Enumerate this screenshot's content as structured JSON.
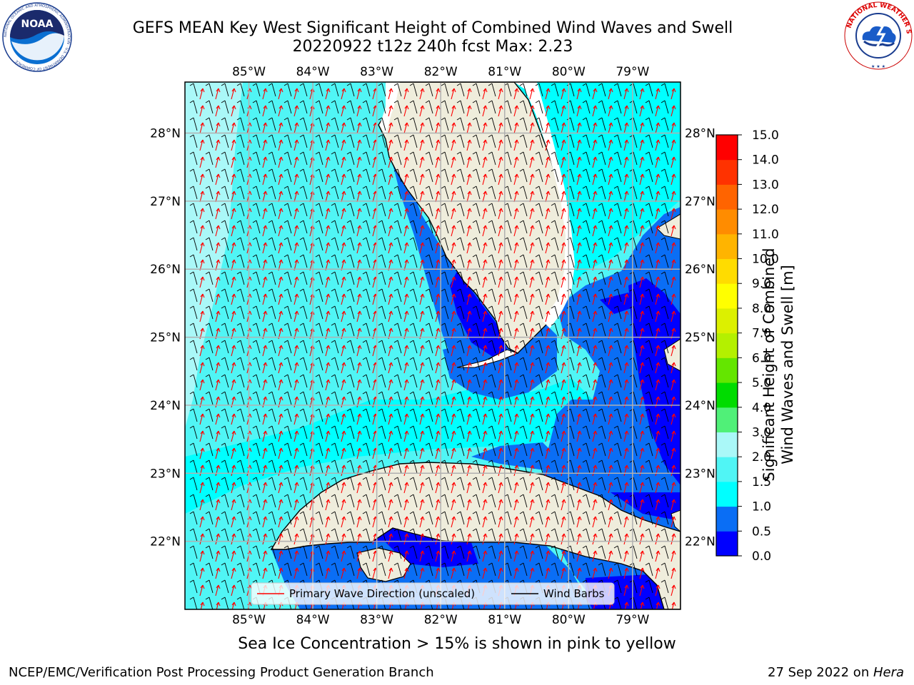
{
  "title": {
    "line1": "GEFS MEAN Key West Significant Height of Combined Wind Waves and Swell",
    "line2": "20220922 t12z 240h fcst   Max: 2.23"
  },
  "logos": {
    "left": {
      "name": "noaa-logo",
      "text": "NOAA",
      "ring_text": "NATIONAL OCEANIC AND ATMOSPHERIC ADMINISTRATION · U.S. DEPARTMENT OF COMMERCE"
    },
    "right": {
      "name": "nws-logo",
      "ring_text": "NATIONAL WEATHER SERVICE"
    }
  },
  "map": {
    "lon_labels": [
      "85°W",
      "84°W",
      "83°W",
      "82°W",
      "81°W",
      "80°W",
      "79°W"
    ],
    "lat_labels": [
      "28°N",
      "27°N",
      "26°N",
      "25°N",
      "24°N",
      "23°N",
      "22°N"
    ],
    "lon_values": [
      -85,
      -84,
      -83,
      -82,
      -81,
      -80,
      -79
    ],
    "lat_values": [
      28,
      27,
      26,
      25,
      24,
      23,
      22
    ],
    "extent": {
      "lon_min": -86.0,
      "lon_max": -78.25,
      "lat_min": 21.0,
      "lat_max": 28.75
    },
    "legend": {
      "wave_dir": "Primary Wave Direction (unscaled)",
      "wind_barbs": "Wind Barbs"
    }
  },
  "colorbar": {
    "label": "Significant Height of Combined Wind Waves and Swell [m]",
    "label_line1": "Significant Height of Combined",
    "label_line2": "Wind Waves and Swell [m]",
    "ticks": [
      "0.0",
      "0.5",
      "1.0",
      "1.5",
      "2.0",
      "3.0",
      "4.0",
      "5.0",
      "6.0",
      "7.0",
      "8.0",
      "9.0",
      "10.0",
      "11.0",
      "12.0",
      "13.0",
      "14.0",
      "15.0"
    ],
    "colors": [
      "#0000ff",
      "#0a6ef5",
      "#00ffff",
      "#50f5f5",
      "#aaf8f8",
      "#50f078",
      "#00dc00",
      "#64e600",
      "#b4f000",
      "#dcf000",
      "#ffff00",
      "#ffdc00",
      "#ffb400",
      "#ff8c00",
      "#ff6400",
      "#ff3200",
      "#ff0000"
    ]
  },
  "sea_ice_note": "Sea Ice Concentration > 15% is shown in pink to yellow",
  "footer": {
    "left": "NCEP/EMC/Verification Post Processing Product Generation Branch",
    "right_prefix": "27 Sep 2022 on ",
    "right_host": "Hera"
  },
  "colors": {
    "land": "#efeddc",
    "grid": "#b0b0b0",
    "wave_arrow": "#ff0000",
    "barb": "#000000"
  }
}
